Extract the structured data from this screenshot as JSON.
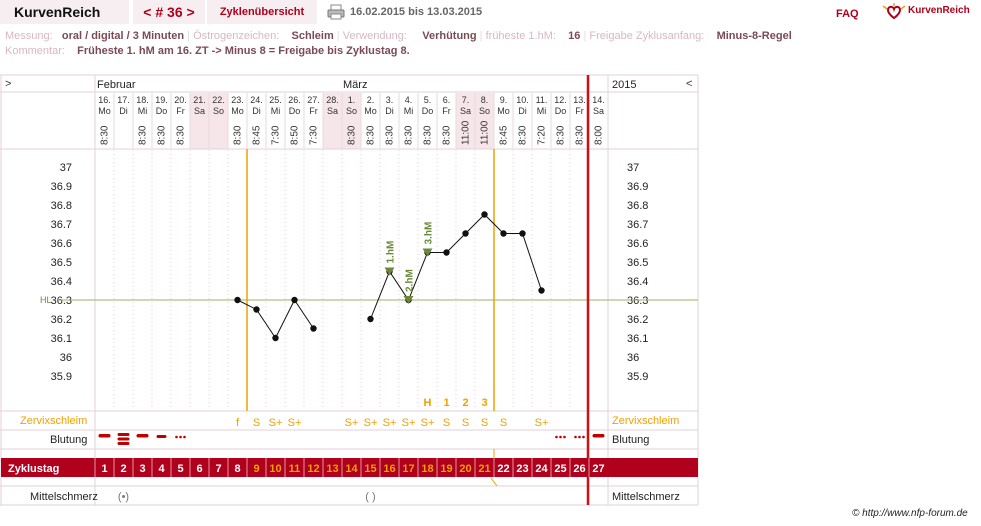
{
  "header": {
    "app_name": "KurvenReich",
    "cycle_nav": "< # 36 >",
    "overview_label": "Zyklenübersicht",
    "print_icon": "printer-icon",
    "date_range": "16.02.2015 bis 13.03.2015",
    "faq_label": "FAQ",
    "logo_text": "KurvenReich",
    "logo_icon": "heart-logo-icon"
  },
  "info": {
    "messung_label": "Messung:",
    "messung_value": "oral / digital / 3 Minuten",
    "oestrogen_label": "Östrogenzeichen:",
    "oestrogen_value": "Schleim",
    "verwendung_label": "Verwendung:",
    "verwendung_value": "Verhütung",
    "fruehste_label": "früheste 1.hM:",
    "fruehste_value": "16",
    "freigabe_label": "Freigabe Zyklusanfang:",
    "freigabe_value": "Minus-8-Regel",
    "kommentar_label": "Kommentar:",
    "kommentar_value": "Früheste 1. hM am 16. ZT -> Minus 8 = Freigabe bis Zyklustag 8."
  },
  "chart_data": {
    "type": "line",
    "nav_left": ">",
    "nav_right": "<",
    "month_feb": "Februar",
    "month_mar": "März",
    "year": "2015",
    "dates": [
      "16.",
      "17.",
      "18.",
      "19.",
      "20.",
      "21.",
      "22.",
      "23.",
      "24.",
      "25.",
      "26.",
      "27.",
      "28.",
      "1.",
      "2.",
      "3.",
      "4.",
      "5.",
      "6.",
      "7.",
      "8.",
      "9.",
      "10.",
      "11.",
      "12.",
      "13.",
      "14."
    ],
    "weekdays": [
      "Mo",
      "Di",
      "Mi",
      "Do",
      "Fr",
      "Sa",
      "So",
      "Mo",
      "Di",
      "Mi",
      "Do",
      "Fr",
      "Sa",
      "So",
      "Mo",
      "Di",
      "Mi",
      "Do",
      "Fr",
      "Sa",
      "So",
      "Mo",
      "Di",
      "Mi",
      "Do",
      "Fr",
      "Sa"
    ],
    "times": [
      "8:30",
      "",
      "8:30",
      "8:30",
      "8:30",
      "",
      "",
      "8:30",
      "8:45",
      "7:30",
      "8:50",
      "7:30",
      "",
      "8:30",
      "8:30",
      "8:30",
      "8:30",
      "8:30",
      "8:30",
      "11:00",
      "11:00",
      "8:45",
      "8:30",
      "7:20",
      "8:30",
      "8:30",
      "8:00"
    ],
    "weekend_days": [
      6,
      7,
      13,
      14,
      20,
      21
    ],
    "y_ticks": [
      "37",
      "36.9",
      "36.8",
      "36.7",
      "36.6",
      "36.5",
      "36.4",
      "36.3",
      "36.2",
      "36.1",
      "36",
      "35.9"
    ],
    "ylim": [
      35.9,
      37.0
    ],
    "temperature_days": [
      8,
      9,
      10,
      11,
      12,
      15,
      16,
      17,
      18,
      19,
      20,
      21,
      22,
      23,
      24
    ],
    "temperature_values": [
      36.3,
      36.25,
      36.1,
      36.3,
      36.15,
      36.2,
      36.45,
      36.3,
      36.55,
      36.55,
      36.65,
      36.75,
      36.65,
      36.65,
      36.35
    ],
    "hl_label": "HL",
    "hl_value": 36.3,
    "high_markers": [
      {
        "day": 16,
        "label": "1.hM",
        "value": 36.45
      },
      {
        "day": 17,
        "label": "2.hM",
        "value": 36.3
      },
      {
        "day": 18,
        "label": "3.hM",
        "value": 36.55
      }
    ],
    "cervix_counts": [
      {
        "day": 18,
        "label": "H"
      },
      {
        "day": 19,
        "label": "1"
      },
      {
        "day": 20,
        "label": "2"
      },
      {
        "day": 21,
        "label": "3"
      }
    ],
    "zervix_label": "Zervixschleim",
    "zervix_values": [
      "",
      "",
      "",
      "",
      "",
      "",
      "",
      "f",
      "S",
      "S+",
      "S+",
      "",
      "",
      "S+",
      "S+",
      "S+",
      "S+",
      "S+",
      "S",
      "S",
      "S",
      "S",
      "",
      "S+",
      "",
      "",
      ""
    ],
    "blutung_label": "Blutung",
    "blutung_values": [
      3,
      4,
      3,
      2,
      1,
      0,
      0,
      0,
      0,
      0,
      0,
      0,
      0,
      0,
      0,
      0,
      0,
      0,
      0,
      0,
      0,
      0,
      0,
      0,
      1,
      1,
      3
    ],
    "zyklustag_label": "Zyklustag",
    "cycle_days": [
      "1",
      "2",
      "3",
      "4",
      "5",
      "6",
      "7",
      "8",
      "9",
      "10",
      "11",
      "12",
      "13",
      "14",
      "15",
      "16",
      "17",
      "18",
      "19",
      "20",
      "21",
      "22",
      "23",
      "24",
      "25",
      "26",
      "27"
    ],
    "mittelschmerz_label": "Mittelschmerz",
    "mittelschmerz_symbols": [
      {
        "day": 2,
        "symbol": "(•)"
      },
      {
        "day": 15,
        "symbol": "( )"
      }
    ],
    "colors": {
      "accent": "#b0001c",
      "orange": "#f0a000",
      "green": "#6a8a3a",
      "weekend": "#f7e6e9",
      "hl_line": "#9bb36a"
    }
  },
  "footer": {
    "copyright": "© http://www.nfp-forum.de"
  }
}
